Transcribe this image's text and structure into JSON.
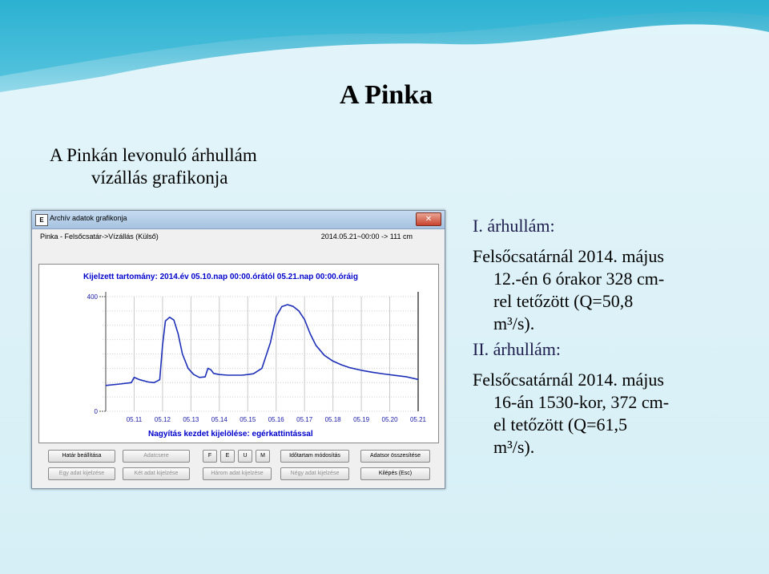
{
  "slide": {
    "title": "A Pinka",
    "caption_line1": "A Pinkán levonuló árhullám",
    "caption_line2": "vízállás grafikonja"
  },
  "notes": {
    "wave1_head": "I. árhullám:",
    "wave1_line1": "Felsőcsatárnál 2014. május",
    "wave1_line2": "12.-én 6 órakor 328 cm-",
    "wave1_line3": "rel tetőzött (Q=50,8",
    "wave1_line4": "m³/s).",
    "wave2_head": "II. árhullám:",
    "wave2_line1": "Felsőcsatárnál 2014. május",
    "wave2_line2": "16-án 1530-kor, 372 cm-",
    "wave2_line3": "el tetőzött (Q=61,5",
    "wave2_line4": "m³/s)."
  },
  "window": {
    "title": "Archív adatok grafikonja",
    "icon_text": "E",
    "close": "✕",
    "station": "Pinka - Felsőcsatár->Vízállás (Külső)",
    "reading": "2014.05.21~00:00 -> 111 cm",
    "range": "Kijelzett tartomány: 2014.év  05.10.nap 00:00.órától  05.21.nap 00:00.óráig",
    "zoom_hint": "Nagyítás kezdet kijelölése: egérkattintással"
  },
  "buttons": {
    "row1": [
      "Határ beállítása",
      "Adatcsere",
      "F",
      "E",
      "U",
      "M",
      "Időtartam módosítás",
      "Adatsor összesítése"
    ],
    "row2": [
      "Egy adat kijelzése",
      "Két adat kijelzése",
      "Három adat kijelzése",
      "Négy adat kijelzése",
      "Kilépés (Esc)"
    ]
  },
  "chart_data": {
    "type": "line",
    "x": [
      "05.11",
      "05.12",
      "05.13",
      "05.14",
      "05.15",
      "05.16",
      "05.17",
      "05.18",
      "05.19",
      "05.20",
      "05.21"
    ],
    "yticks": [
      "400",
      "0"
    ],
    "ylim": [
      0,
      400
    ],
    "series": [
      {
        "values_by_day": [
          [
            10.0,
            90
          ],
          [
            10.5,
            95
          ],
          [
            10.9,
            100
          ],
          [
            11.0,
            118
          ],
          [
            11.2,
            110
          ],
          [
            11.5,
            102
          ],
          [
            11.7,
            100
          ],
          [
            11.9,
            110
          ],
          [
            12.0,
            230
          ],
          [
            12.1,
            315
          ],
          [
            12.25,
            328
          ],
          [
            12.4,
            318
          ],
          [
            12.55,
            270
          ],
          [
            12.7,
            200
          ],
          [
            12.9,
            150
          ],
          [
            13.1,
            128
          ],
          [
            13.3,
            118
          ],
          [
            13.5,
            120
          ],
          [
            13.6,
            150
          ],
          [
            13.7,
            145
          ],
          [
            13.8,
            132
          ],
          [
            14.0,
            128
          ],
          [
            14.3,
            126
          ],
          [
            14.6,
            126
          ],
          [
            14.8,
            126
          ],
          [
            15.0,
            128
          ],
          [
            15.2,
            131
          ],
          [
            15.5,
            150
          ],
          [
            15.8,
            240
          ],
          [
            16.0,
            330
          ],
          [
            16.2,
            365
          ],
          [
            16.4,
            372
          ],
          [
            16.6,
            366
          ],
          [
            16.8,
            350
          ],
          [
            17.0,
            320
          ],
          [
            17.2,
            270
          ],
          [
            17.4,
            230
          ],
          [
            17.7,
            195
          ],
          [
            18.0,
            175
          ],
          [
            18.3,
            162
          ],
          [
            18.6,
            152
          ],
          [
            19.0,
            143
          ],
          [
            19.4,
            136
          ],
          [
            19.8,
            130
          ],
          [
            20.2,
            125
          ],
          [
            20.6,
            120
          ],
          [
            21.0,
            111
          ]
        ],
        "color": "#1d2fb8"
      }
    ],
    "grid": true
  }
}
